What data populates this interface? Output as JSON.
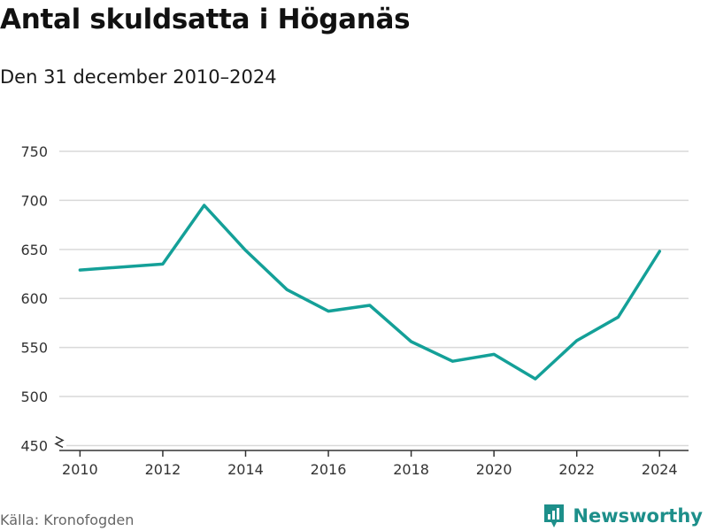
{
  "header": {
    "title": "Antal skuldsatta i Höganäs",
    "subtitle": "Den 31 december 2010–2024"
  },
  "footer": {
    "source": "Källa: Kronofogden",
    "brand": "Newsworthy"
  },
  "colors": {
    "line": "#14a098",
    "grid": "#d9d9d9",
    "axis": "#333333",
    "brand": "#1d8f8a"
  },
  "chart_data": {
    "type": "line",
    "x": [
      2010,
      2012,
      2013,
      2014,
      2015,
      2016,
      2017,
      2018,
      2019,
      2020,
      2021,
      2022,
      2023,
      2024
    ],
    "series": [
      {
        "values": [
          629,
          635,
          695,
          649,
          609,
          587,
          593,
          556,
          536,
          543,
          518,
          557,
          581,
          648
        ]
      }
    ],
    "xticks": [
      "2010",
      "2012",
      "2014",
      "2016",
      "2018",
      "2020",
      "2022",
      "2024"
    ],
    "yticks": [
      "450",
      "500",
      "550",
      "600",
      "650",
      "700",
      "750"
    ],
    "xlim": [
      2009.5,
      2024.7
    ],
    "ylim": [
      445,
      750
    ],
    "y_axis_break": true,
    "grid": true,
    "xlabel": "",
    "ylabel": ""
  }
}
